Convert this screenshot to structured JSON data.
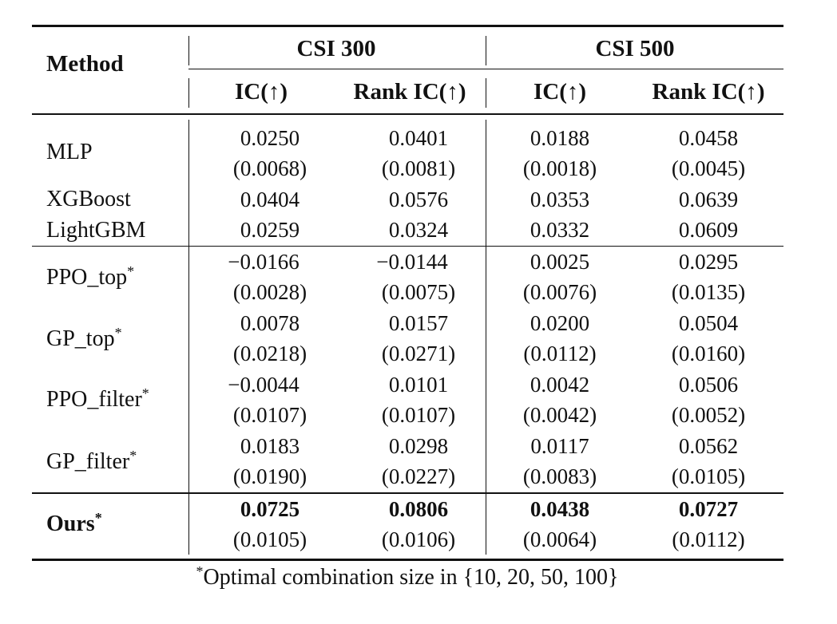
{
  "table": {
    "header": {
      "method": "Method",
      "groups": [
        "CSI 300",
        "CSI 500"
      ],
      "metrics": [
        "IC(↑)",
        "Rank IC(↑)",
        "IC(↑)",
        "Rank IC(↑)"
      ]
    },
    "rows": [
      {
        "method": "MLP",
        "star": "",
        "values": [
          "0.0250",
          "0.0401",
          "0.0188",
          "0.0458"
        ],
        "stds": [
          "(0.0068)",
          "(0.0081)",
          "(0.0018)",
          "(0.0045)"
        ]
      },
      {
        "method": "XGBoost",
        "star": "",
        "values": [
          "0.0404",
          "0.0576",
          "0.0353",
          "0.0639"
        ]
      },
      {
        "method": "LightGBM",
        "star": "",
        "values": [
          "0.0259",
          "0.0324",
          "0.0332",
          "0.0609"
        ]
      },
      {
        "method": "PPO_top",
        "star": "*",
        "values": [
          "−0.0166",
          "−0.0144",
          "0.0025",
          "0.0295"
        ],
        "stds": [
          "(0.0028)",
          "(0.0075)",
          "(0.0076)",
          "(0.0135)"
        ]
      },
      {
        "method": "GP_top",
        "star": "*",
        "values": [
          "0.0078",
          "0.0157",
          "0.0200",
          "0.0504"
        ],
        "stds": [
          "(0.0218)",
          "(0.0271)",
          "(0.0112)",
          "(0.0160)"
        ]
      },
      {
        "method": "PPO_filter",
        "star": "*",
        "values": [
          "−0.0044",
          "0.0101",
          "0.0042",
          "0.0506"
        ],
        "stds": [
          "(0.0107)",
          "(0.0107)",
          "(0.0042)",
          "(0.0052)"
        ]
      },
      {
        "method": "GP_filter",
        "star": "*",
        "values": [
          "0.0183",
          "0.0298",
          "0.0117",
          "0.0562"
        ],
        "stds": [
          "(0.0190)",
          "(0.0227)",
          "(0.0083)",
          "(0.0105)"
        ]
      },
      {
        "method": "Ours",
        "star": "*",
        "values": [
          "0.0725",
          "0.0806",
          "0.0438",
          "0.0727"
        ],
        "stds": [
          "(0.0105)",
          "(0.0106)",
          "(0.0064)",
          "(0.0112)"
        ]
      }
    ],
    "footnote": {
      "star": "*",
      "text": "Optimal combination size in {10, 20, 50, 100}"
    }
  }
}
